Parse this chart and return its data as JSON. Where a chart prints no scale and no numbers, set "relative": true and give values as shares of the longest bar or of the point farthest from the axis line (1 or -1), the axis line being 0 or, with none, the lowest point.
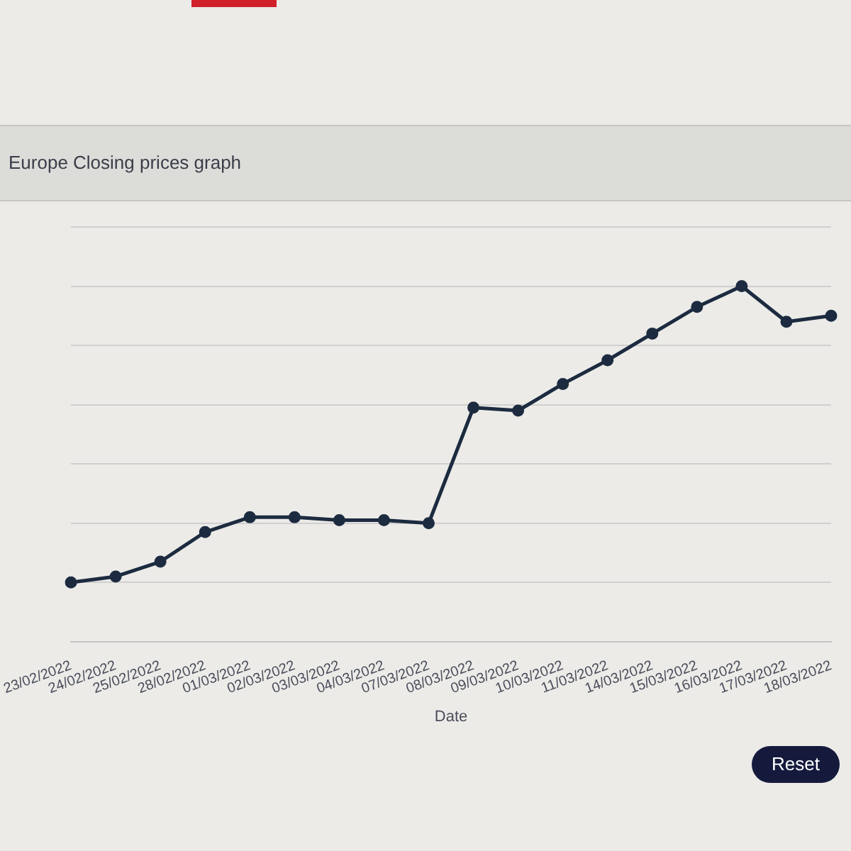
{
  "chart_data": {
    "type": "line",
    "title": "Europe Closing prices graph",
    "xlabel": "Date",
    "categories": [
      "23/02/2022",
      "24/02/2022",
      "25/02/2022",
      "28/02/2022",
      "01/03/2022",
      "02/03/2022",
      "03/03/2022",
      "04/03/2022",
      "07/03/2022",
      "08/03/2022",
      "09/03/2022",
      "10/03/2022",
      "11/03/2022",
      "14/03/2022",
      "15/03/2022",
      "16/03/2022",
      "17/03/2022",
      "18/03/2022"
    ],
    "series": [
      {
        "color": "#1c2b3f",
        "values": [
          0,
          0.02,
          0.07,
          0.17,
          0.22,
          0.22,
          0.21,
          0.21,
          0.2,
          0.59,
          0.58,
          0.67,
          0.75,
          0.84,
          0.93,
          1,
          0.88,
          0.9
        ]
      }
    ],
    "relative": true,
    "grid": "y",
    "legend": false,
    "marker": "circle",
    "line_style": "solid",
    "annotations": [
      "Reset"
    ]
  }
}
